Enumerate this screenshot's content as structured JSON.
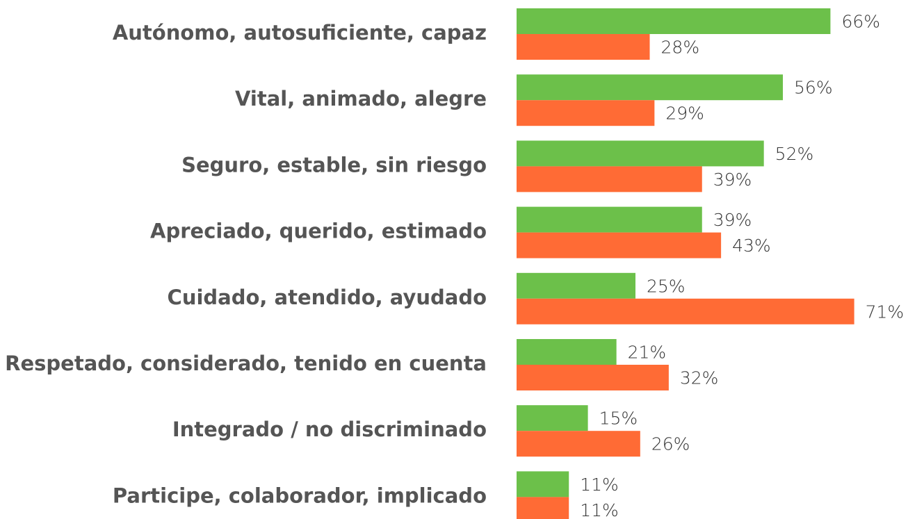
{
  "chart_data": {
    "type": "bar",
    "orientation": "horizontal",
    "categories": [
      "Autónomo, autosuficiente, capaz",
      "Vital, animado, alegre",
      "Seguro, estable, sin riesgo",
      "Apreciado, querido, estimado",
      "Cuidado, atendido, ayudado",
      "Respetado, considerado, tenido en cuenta",
      "Integrado / no discriminado",
      "Participe, colaborador, implicado"
    ],
    "series": [
      {
        "color": "#6cc04a",
        "values": [
          66,
          56,
          52,
          39,
          25,
          21,
          15,
          11
        ],
        "value_labels": [
          "66%",
          "56%",
          "52%",
          "39%",
          "25%",
          "21%",
          "15%",
          "11%"
        ]
      },
      {
        "color": "#ff6b35",
        "values": [
          28,
          29,
          39,
          43,
          71,
          32,
          26,
          11
        ],
        "value_labels": [
          "28%",
          "29%",
          "39%",
          "43%",
          "71%",
          "32%",
          "26%",
          "11%"
        ]
      }
    ]
  }
}
